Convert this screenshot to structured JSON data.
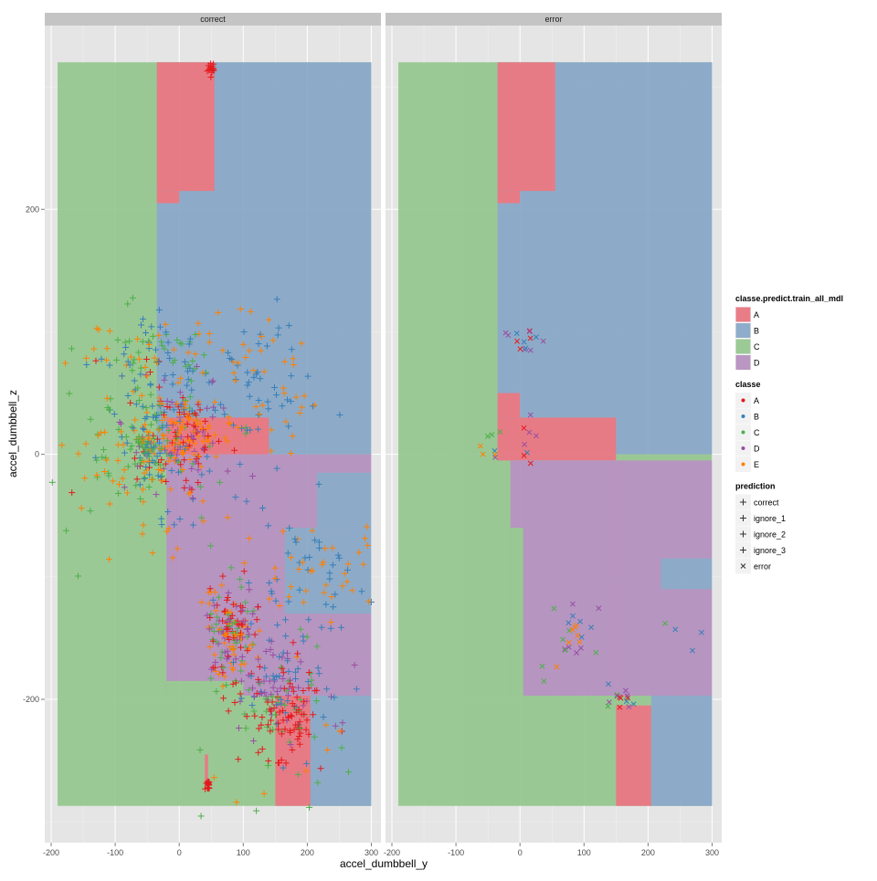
{
  "chart_data": {
    "type": "scatter",
    "facets": [
      "correct",
      "error"
    ],
    "xlabel": "accel_dumbbell_y",
    "ylabel": "accel_dumbbell_z",
    "x_ticks": [
      -200,
      -100,
      0,
      100,
      200,
      300
    ],
    "y_ticks": [
      -200,
      0,
      200
    ],
    "xlim": [
      -210,
      315
    ],
    "ylim": [
      -317,
      350
    ],
    "grid": true,
    "legend_position": "right",
    "background_regions": {
      "legend_title": "classe.predict.train_all_mdl",
      "classes": [
        {
          "label": "A",
          "color": "#E7707B"
        },
        {
          "label": "B",
          "color": "#84A5C5"
        },
        {
          "label": "C",
          "color": "#92C58C"
        },
        {
          "label": "D",
          "color": "#B28DBD"
        }
      ],
      "facets": [
        {
          "facet": "correct",
          "rects": [
            {
              "c": "C",
              "x0": -190,
              "x1": 300,
              "y0": -287,
              "y1": 320
            },
            {
              "c": "B",
              "x0": -35,
              "x1": 300,
              "y0": 0,
              "y1": 320
            },
            {
              "c": "A",
              "x0": -35,
              "x1": 55,
              "y0": 215,
              "y1": 320
            },
            {
              "c": "A",
              "x0": -35,
              "x1": 0,
              "y0": 205,
              "y1": 215
            },
            {
              "c": "A",
              "x0": -20,
              "x1": 140,
              "y0": -5,
              "y1": 30
            },
            {
              "c": "D",
              "x0": -20,
              "x1": 300,
              "y0": -197,
              "y1": 0
            },
            {
              "c": "B",
              "x0": 165,
              "x1": 300,
              "y0": -130,
              "y1": -60
            },
            {
              "c": "B",
              "x0": 215,
              "x1": 300,
              "y0": -60,
              "y1": -15
            },
            {
              "c": "C",
              "x0": -20,
              "x1": 100,
              "y0": -202,
              "y1": -185
            },
            {
              "c": "A",
              "x0": 150,
              "x1": 205,
              "y0": -287,
              "y1": -197
            },
            {
              "c": "B",
              "x0": 205,
              "x1": 300,
              "y0": -287,
              "y1": -197
            },
            {
              "c": "A",
              "x0": 40,
              "x1": 45,
              "y0": -270,
              "y1": -245
            }
          ]
        },
        {
          "facet": "error",
          "rects": [
            {
              "c": "C",
              "x0": -190,
              "x1": 300,
              "y0": -287,
              "y1": 320
            },
            {
              "c": "B",
              "x0": -35,
              "x1": 300,
              "y0": 0,
              "y1": 320
            },
            {
              "c": "A",
              "x0": -35,
              "x1": 55,
              "y0": 215,
              "y1": 320
            },
            {
              "c": "A",
              "x0": -35,
              "x1": 0,
              "y0": 205,
              "y1": 215
            },
            {
              "c": "A",
              "x0": -35,
              "x1": 150,
              "y0": -5,
              "y1": 30
            },
            {
              "c": "A",
              "x0": -35,
              "x1": 0,
              "y0": 30,
              "y1": 50
            },
            {
              "c": "D",
              "x0": -15,
              "x1": 300,
              "y0": -197,
              "y1": -5
            },
            {
              "c": "B",
              "x0": 220,
              "x1": 300,
              "y0": -110,
              "y1": -85
            },
            {
              "c": "C",
              "x0": -15,
              "x1": 5,
              "y0": -200,
              "y1": -60
            },
            {
              "c": "A",
              "x0": 150,
              "x1": 205,
              "y0": -287,
              "y1": -205
            },
            {
              "c": "B",
              "x0": 205,
              "x1": 300,
              "y0": -287,
              "y1": -197
            }
          ]
        }
      ]
    },
    "point_classes": {
      "legend_title": "classe",
      "classes": [
        {
          "label": "A",
          "color": "#E41A1C"
        },
        {
          "label": "B",
          "color": "#377EB8"
        },
        {
          "label": "C",
          "color": "#4DAF4A"
        },
        {
          "label": "D",
          "color": "#984EA3"
        },
        {
          "label": "E",
          "color": "#FF7F00"
        }
      ]
    },
    "prediction_shapes": {
      "legend_title": "prediction",
      "items": [
        {
          "label": "correct",
          "shape": "+"
        },
        {
          "label": "ignore_1",
          "shape": "+"
        },
        {
          "label": "ignore_2",
          "shape": "+"
        },
        {
          "label": "ignore_3",
          "shape": "+"
        },
        {
          "label": "error",
          "shape": "x"
        }
      ]
    },
    "point_clusters": {
      "correct": [
        {
          "x": 50,
          "y": 315,
          "sx": 3,
          "sy": 4,
          "n": 14,
          "cls": [
            "A"
          ]
        },
        {
          "x": -15,
          "y": 15,
          "sx": 45,
          "sy": 30,
          "n": 200,
          "cls": [
            "A",
            "B",
            "C",
            "D",
            "E"
          ]
        },
        {
          "x": -60,
          "y": 75,
          "sx": 55,
          "sy": 25,
          "n": 110,
          "cls": [
            "B",
            "E",
            "C"
          ]
        },
        {
          "x": 120,
          "y": 55,
          "sx": 55,
          "sy": 30,
          "n": 90,
          "cls": [
            "B",
            "E"
          ]
        },
        {
          "x": -50,
          "y": 10,
          "sx": 20,
          "sy": 15,
          "n": 70,
          "cls": [
            "C",
            "E",
            "B"
          ]
        },
        {
          "x": 20,
          "y": 15,
          "sx": 20,
          "sy": 15,
          "n": 80,
          "cls": [
            "D",
            "E",
            "A"
          ]
        },
        {
          "x": -90,
          "y": -15,
          "sx": 60,
          "sy": 25,
          "n": 60,
          "cls": [
            "E",
            "C"
          ]
        },
        {
          "x": 80,
          "y": -145,
          "sx": 20,
          "sy": 20,
          "n": 170,
          "cls": [
            "A",
            "C",
            "E",
            "D"
          ]
        },
        {
          "x": 210,
          "y": -100,
          "sx": 50,
          "sy": 25,
          "n": 80,
          "cls": [
            "B",
            "E"
          ]
        },
        {
          "x": 160,
          "y": -190,
          "sx": 35,
          "sy": 25,
          "n": 150,
          "cls": [
            "D",
            "B",
            "A",
            "C"
          ]
        },
        {
          "x": 165,
          "y": -220,
          "sx": 30,
          "sy": 15,
          "n": 50,
          "cls": [
            "A"
          ]
        },
        {
          "x": 45,
          "y": -270,
          "sx": 2,
          "sy": 2,
          "n": 16,
          "cls": [
            "A"
          ]
        },
        {
          "x": 120,
          "y": -260,
          "sx": 70,
          "sy": 25,
          "n": 18,
          "cls": [
            "E",
            "C"
          ]
        }
      ],
      "error": [
        {
          "x": 5,
          "y": 92,
          "sx": 12,
          "sy": 6,
          "n": 14,
          "cls": [
            "D",
            "B",
            "A"
          ]
        },
        {
          "x": -40,
          "y": 8,
          "sx": 15,
          "sy": 8,
          "n": 8,
          "cls": [
            "D",
            "C",
            "E",
            "B"
          ]
        },
        {
          "x": 10,
          "y": 15,
          "sx": 12,
          "sy": 12,
          "n": 8,
          "cls": [
            "A",
            "D",
            "B"
          ]
        },
        {
          "x": 85,
          "y": -140,
          "sx": 18,
          "sy": 12,
          "n": 22,
          "cls": [
            "D",
            "B",
            "E",
            "C"
          ]
        },
        {
          "x": 155,
          "y": -200,
          "sx": 15,
          "sy": 8,
          "n": 14,
          "cls": [
            "D",
            "A",
            "C",
            "B"
          ]
        },
        {
          "x": 250,
          "y": -160,
          "sx": 40,
          "sy": 15,
          "n": 5,
          "cls": [
            "C",
            "B"
          ]
        },
        {
          "x": 35,
          "y": -175,
          "sx": 10,
          "sy": 10,
          "n": 3,
          "cls": [
            "E",
            "C"
          ]
        }
      ]
    }
  }
}
